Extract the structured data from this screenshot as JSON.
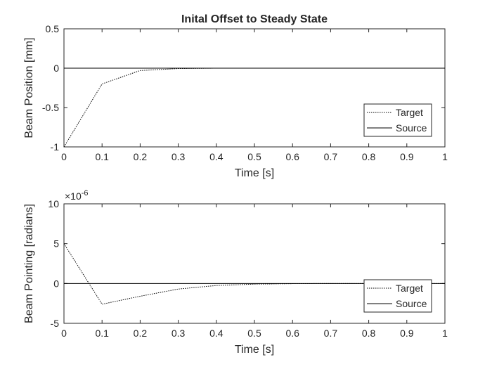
{
  "chart_data": [
    {
      "type": "line",
      "title": "Inital Offset to Steady State",
      "xlabel": "Time [s]",
      "ylabel": "Beam Position [mm]",
      "xlim": [
        0,
        1
      ],
      "ylim": [
        -1,
        0.5
      ],
      "x_ticks": [
        "0",
        "0.1",
        "0.2",
        "0.3",
        "0.4",
        "0.5",
        "0.6",
        "0.7",
        "0.8",
        "0.9",
        "1"
      ],
      "y_ticks": [
        "-1",
        "-0.5",
        "0",
        "0.5"
      ],
      "exponent_label": "",
      "grid": false,
      "legend_position": "lower-right",
      "series": [
        {
          "name": "Target",
          "style": "dotted",
          "color": "#000000",
          "x": [
            0,
            0.1,
            0.2,
            0.3,
            0.4,
            0.5,
            0.6,
            0.7,
            0.8,
            0.9,
            1.0
          ],
          "y": [
            -1.0,
            -0.2,
            -0.03,
            -0.005,
            0,
            0,
            0,
            0,
            0,
            0,
            0
          ]
        },
        {
          "name": "Source",
          "style": "solid",
          "color": "#000000",
          "x": [
            0,
            1
          ],
          "y": [
            0,
            0
          ]
        }
      ]
    },
    {
      "type": "line",
      "title": "",
      "xlabel": "Time [s]",
      "ylabel": "Beam Pointing [radians]",
      "xlim": [
        0,
        1
      ],
      "ylim": [
        -5,
        10
      ],
      "x_ticks": [
        "0",
        "0.1",
        "0.2",
        "0.3",
        "0.4",
        "0.5",
        "0.6",
        "0.7",
        "0.8",
        "0.9",
        "1"
      ],
      "y_ticks": [
        "-5",
        "0",
        "5",
        "10"
      ],
      "exponent_label": "×10",
      "exponent_power": "-6",
      "grid": false,
      "legend_position": "lower-right",
      "series": [
        {
          "name": "Target",
          "style": "dotted",
          "color": "#000000",
          "x": [
            0,
            0.1,
            0.2,
            0.3,
            0.4,
            0.5,
            0.6,
            0.7,
            0.8,
            0.9,
            1.0
          ],
          "y": [
            5.0,
            -2.6,
            -1.6,
            -0.7,
            -0.25,
            -0.08,
            -0.02,
            0,
            0,
            0,
            0
          ]
        },
        {
          "name": "Source",
          "style": "solid",
          "color": "#000000",
          "x": [
            0,
            1
          ],
          "y": [
            0,
            0
          ]
        }
      ]
    }
  ]
}
